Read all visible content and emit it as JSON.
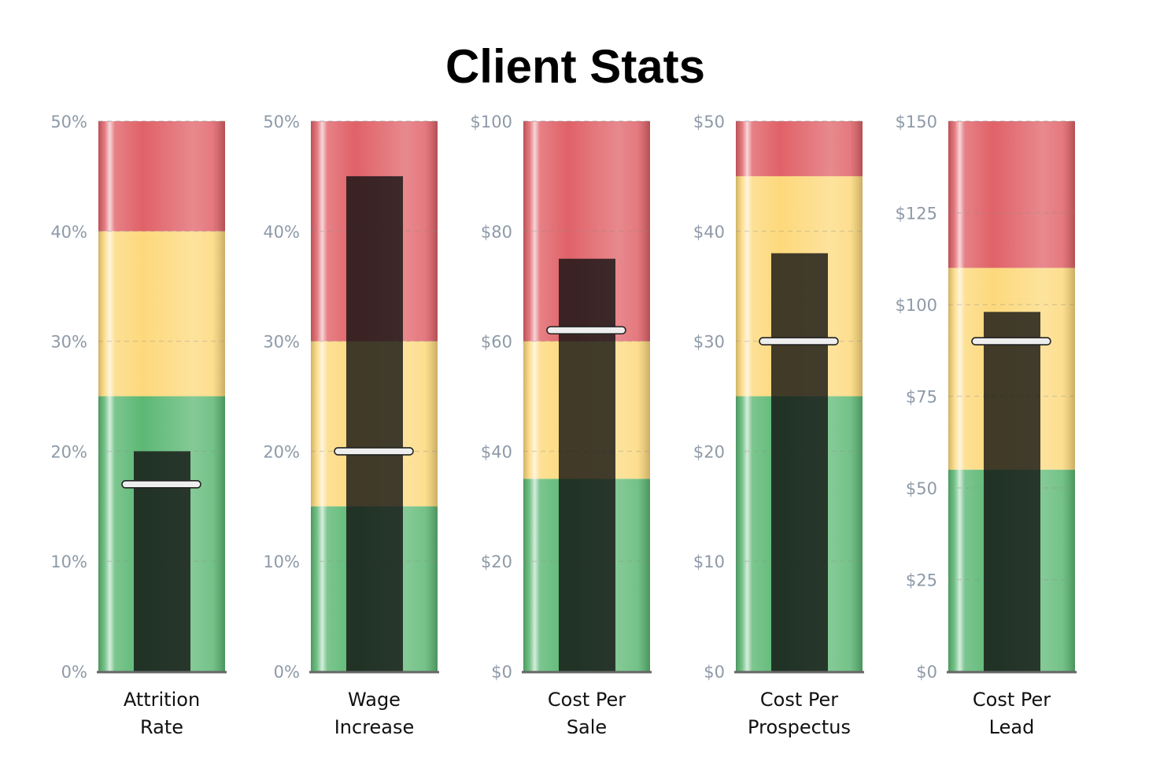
{
  "chart_data": {
    "type": "bullet",
    "title": "Client Stats",
    "orientation": "vertical",
    "band_colors": {
      "good": "#5cb874",
      "ok": "#fdd97c",
      "bad": "#e06268"
    },
    "bar_color": "#111111",
    "target_color": "#eeeeee",
    "grid": true,
    "charts": [
      {
        "label_lines": [
          "Attrition",
          "Rate"
        ],
        "range": [
          0,
          50
        ],
        "ticks": [
          0,
          10,
          20,
          30,
          40,
          50
        ],
        "tick_labels": [
          "0%",
          "10%",
          "20%",
          "30%",
          "40%",
          "50%"
        ],
        "bands": [
          25,
          40,
          50
        ],
        "value": 20,
        "target": 17
      },
      {
        "label_lines": [
          "Wage",
          "Increase"
        ],
        "range": [
          0,
          50
        ],
        "ticks": [
          0,
          10,
          20,
          30,
          40,
          50
        ],
        "tick_labels": [
          "0%",
          "10%",
          "20%",
          "30%",
          "40%",
          "50%"
        ],
        "bands": [
          15,
          30,
          50
        ],
        "value": 45,
        "target": 20
      },
      {
        "label_lines": [
          "Cost Per",
          "Sale"
        ],
        "range": [
          0,
          100
        ],
        "ticks": [
          0,
          20,
          40,
          60,
          80,
          100
        ],
        "tick_labels": [
          "$0",
          "$20",
          "$40",
          "$60",
          "$80",
          "$100"
        ],
        "bands": [
          35,
          60,
          100
        ],
        "value": 75,
        "target": 62
      },
      {
        "label_lines": [
          "Cost Per",
          "Prospectus"
        ],
        "range": [
          0,
          50
        ],
        "ticks": [
          0,
          10,
          20,
          30,
          40,
          50
        ],
        "tick_labels": [
          "$0",
          "$10",
          "$20",
          "$30",
          "$40",
          "$50"
        ],
        "bands": [
          25,
          45,
          50
        ],
        "value": 38,
        "target": 30
      },
      {
        "label_lines": [
          "Cost Per",
          "Lead"
        ],
        "range": [
          0,
          150
        ],
        "ticks": [
          0,
          25,
          50,
          75,
          100,
          125,
          150
        ],
        "tick_labels": [
          "$0",
          "$25",
          "$50",
          "$75",
          "$100",
          "$125",
          "$150"
        ],
        "bands": [
          55,
          110,
          150
        ],
        "value": 98,
        "target": 90
      }
    ]
  }
}
